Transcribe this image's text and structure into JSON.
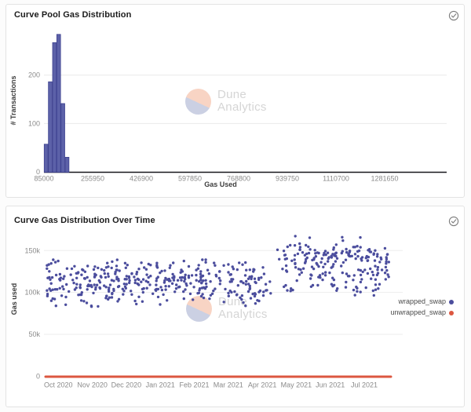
{
  "icons": {
    "panel_status": "circled-check",
    "panel_status_color": "#7c7c7c"
  },
  "watermark": {
    "line1": "Dune",
    "line2": "Analytics",
    "circle_top_color": "#f8d4c4",
    "circle_bottom_color": "#cbd0e3",
    "text_color": "#d5d5d5"
  },
  "charts": [
    {
      "title": "Curve Pool Gas Distribution",
      "chart_data": {
        "type": "bar",
        "title": "Curve Pool Gas Distribution",
        "xlabel": "Gas Used",
        "ylabel": "# Transactions",
        "bar_color": "#5c61a8",
        "bar_border": "#3f4390",
        "bin_start": 85000,
        "bin_width": 13800,
        "counts": [
          58,
          187,
          268,
          285,
          142,
          31
        ],
        "x_ticks": [
          "85000",
          "255950",
          "426900",
          "597850",
          "768800",
          "939750",
          "1110700",
          "1281650"
        ],
        "y_ticks": [
          0,
          100,
          200
        ],
        "ylim": [
          0,
          290
        ],
        "xlim": [
          85000,
          1500000
        ],
        "grid": "horizontal"
      }
    },
    {
      "title": "Curve Gas Distribution Over Time",
      "chart_data": {
        "type": "scatter",
        "title": "Curve Gas Distribution Over Time",
        "xlabel": "",
        "ylabel": "Gas used",
        "x_ticks": [
          "Oct 2020",
          "Nov 2020",
          "Dec 2020",
          "Jan 2021",
          "Feb 2021",
          "Mar 2021",
          "Apr 2021",
          "May 2021",
          "Jun 2021",
          "Jul 2021"
        ],
        "y_ticks": [
          "0",
          "50k",
          "100k",
          "150k"
        ],
        "y_tick_values": [
          0,
          50,
          100,
          150
        ],
        "ylim_k": [
          0,
          170
        ],
        "grid": "horizontal",
        "legend_position": "right",
        "series": [
          {
            "name": "wrapped_swap",
            "color": "#4b4d9d",
            "marker": "dot",
            "summary": "Dense scatter of swap gas costs: Oct 2020 - Mar 2021 centered ~112k gas (range 80k-140k); from Apr 2021 shifts up, bands near 143k, 124k and 106k, peaks ~165k in May-Jul 2021",
            "generator": {
              "seed": 1337,
              "dot_radius": 1.7,
              "clusters": [
                {
                  "t0": -0.35,
                  "t1": 6.25,
                  "count": 395,
                  "bands": [
                    {
                      "w": 0.78,
                      "mean": 112,
                      "sd": 11,
                      "min": 84,
                      "max": 139
                    },
                    {
                      "w": 0.12,
                      "mean": 95,
                      "sd": 5,
                      "min": 81,
                      "max": 104
                    },
                    {
                      "w": 0.1,
                      "mean": 132,
                      "sd": 4,
                      "min": 125,
                      "max": 141
                    }
                  ]
                },
                {
                  "t0": 6.4,
                  "t1": 9.75,
                  "count": 215,
                  "bands": [
                    {
                      "w": 0.5,
                      "mean": 143,
                      "sd": 6,
                      "min": 127,
                      "max": 157
                    },
                    {
                      "w": 0.27,
                      "mean": 124,
                      "sd": 6,
                      "min": 109,
                      "max": 137
                    },
                    {
                      "w": 0.17,
                      "mean": 106,
                      "sd": 6,
                      "min": 93,
                      "max": 117
                    },
                    {
                      "w": 0.06,
                      "mean": 160,
                      "sd": 4,
                      "min": 154,
                      "max": 168
                    }
                  ]
                }
              ]
            }
          },
          {
            "name": "unwrapped_swap",
            "color": "#dc5740",
            "marker": "line",
            "value_k": 0,
            "summary": "Flat line at 0 gas across the whole time range"
          }
        ]
      }
    }
  ]
}
